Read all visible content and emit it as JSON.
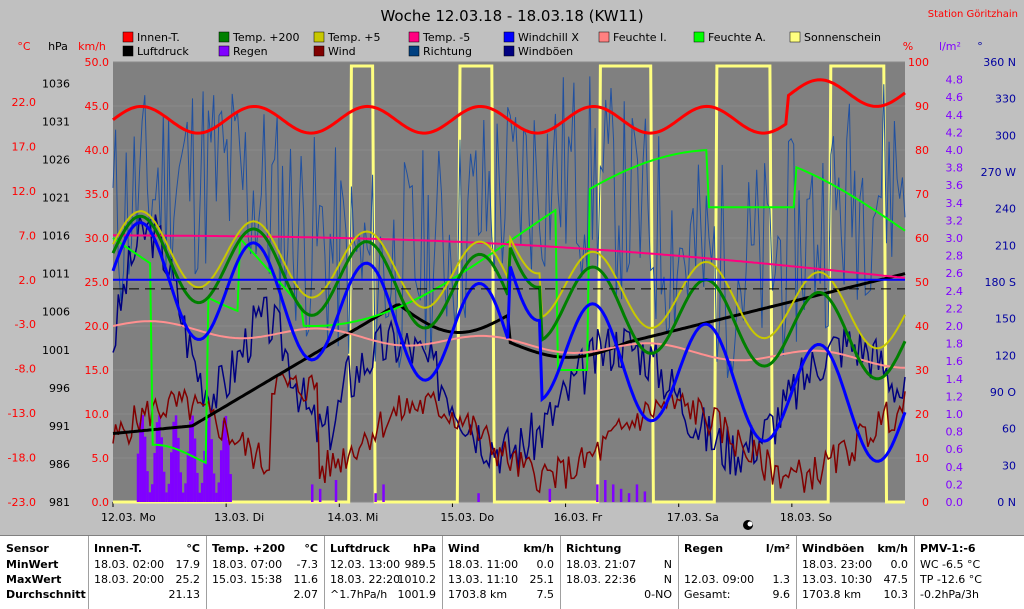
{
  "chart_data": {
    "type": "line",
    "title": "Woche 12.03.18 - 18.03.18 (KW11)",
    "station": "Station Göritzhain",
    "x_labels": [
      "12.03.  Mo",
      "13.03.  Di",
      "14.03.  Mi",
      "15.03.  Do",
      "16.03.  Fr",
      "17.03.  Sa",
      "18.03.  So"
    ],
    "axes": {
      "temp": {
        "unit": "°C",
        "ticks": [
          "22.0",
          "17.0",
          "12.0",
          "7.0",
          "2.0",
          "-3.0",
          "-8.0",
          "-13.0",
          "-18.0",
          "-23.0"
        ],
        "color": "#ff0000"
      },
      "pressure": {
        "unit": "hPa",
        "ticks": [
          "1036",
          "1031",
          "1026",
          "1021",
          "1016",
          "1011",
          "1006",
          "1001",
          "996",
          "991",
          "986",
          "981"
        ],
        "color": "#000000"
      },
      "speed": {
        "unit": "km/h",
        "ticks": [
          "50.0",
          "45.0",
          "40.0",
          "35.0",
          "30.0",
          "25.0",
          "20.0",
          "15.0",
          "10.0",
          "5.0",
          "0.0"
        ],
        "color": "#ff0000"
      },
      "humidity": {
        "unit": "%",
        "ticks": [
          "100",
          "90",
          "80",
          "70",
          "60",
          "50",
          "40",
          "30",
          "20",
          "10",
          "0"
        ],
        "color": "#ff0000"
      },
      "rain": {
        "unit": "l/m²",
        "ticks": [
          "4.8",
          "4.6",
          "4.4",
          "4.2",
          "4.0",
          "3.8",
          "3.6",
          "3.4",
          "3.2",
          "3.0",
          "2.8",
          "2.6",
          "2.4",
          "2.2",
          "2.0",
          "1.8",
          "1.6",
          "1.4",
          "1.2",
          "1.0",
          "0.8",
          "0.6",
          "0.4",
          "0.2",
          "0.0"
        ],
        "color": "#8000ff"
      },
      "direction": {
        "unit": "°",
        "ticks": [
          "360 N",
          "330",
          "300",
          "270 W",
          "240",
          "210",
          "180 S",
          "150",
          "120",
          "90 O",
          "60",
          "30",
          "0 N"
        ],
        "color": "#0000a0"
      }
    },
    "legend": [
      {
        "name": "Innen-T.",
        "color": "#ff0000"
      },
      {
        "name": "Temp. +200",
        "color": "#008000"
      },
      {
        "name": "Temp. +5",
        "color": "#c8c800"
      },
      {
        "name": "Temp. -5",
        "color": "#ff0080"
      },
      {
        "name": "Windchill X",
        "color": "#0000ff"
      },
      {
        "name": "Feuchte I.",
        "color": "#ff8080"
      },
      {
        "name": "Feuchte A.",
        "color": "#00ff00"
      },
      {
        "name": "Sonnenschein",
        "color": "#ffff80"
      },
      {
        "name": "Luftdruck",
        "color": "#000000"
      },
      {
        "name": "Regen",
        "color": "#8000ff"
      },
      {
        "name": "Wind",
        "color": "#800000"
      },
      {
        "name": "Richtung",
        "color": "#004080"
      },
      {
        "name": "Windböen",
        "color": "#000080"
      }
    ],
    "ref_lines": {
      "temp_zero": 2.0,
      "pressure_mean": 1009
    }
  },
  "stats": [
    {
      "header": "Sensor",
      "unit": "",
      "rows": [
        [
          "MinWert",
          ""
        ],
        [
          "MaxWert",
          ""
        ],
        [
          "Durchschnitt",
          ""
        ]
      ]
    },
    {
      "header": "Innen-T.",
      "unit": "°C",
      "rows": [
        [
          "18.03.  02:00",
          "17.9"
        ],
        [
          "18.03.  20:00",
          "25.2"
        ],
        [
          "",
          "21.13"
        ]
      ]
    },
    {
      "header": "Temp. +200",
      "unit": "°C",
      "rows": [
        [
          "18.03.  07:00",
          "-7.3"
        ],
        [
          "15.03.  15:38",
          "11.6"
        ],
        [
          "",
          "2.07"
        ]
      ]
    },
    {
      "header": "Luftdruck",
      "unit": "hPa",
      "rows": [
        [
          "12.03.  13:00",
          "989.5"
        ],
        [
          "18.03.  22:20",
          "1010.2"
        ],
        [
          "^1.7hPa/h",
          "1001.9"
        ]
      ]
    },
    {
      "header": "Wind",
      "unit": "km/h",
      "rows": [
        [
          "18.03.  11:00",
          "0.0"
        ],
        [
          "13.03.  11:10",
          "25.1"
        ],
        [
          "1703.8 km",
          "7.5"
        ]
      ]
    },
    {
      "header": "Richtung",
      "unit": "",
      "rows": [
        [
          "18.03.  21:07",
          "N"
        ],
        [
          "18.03.  22:36",
          "N"
        ],
        [
          "",
          "0-NO"
        ]
      ]
    },
    {
      "header": "Regen",
      "unit": "l/m²",
      "rows": [
        [
          "",
          ""
        ],
        [
          "12.03.  09:00",
          "1.3"
        ],
        [
          "Gesamt:",
          "9.6"
        ]
      ]
    },
    {
      "header": "Windböen",
      "unit": "km/h",
      "rows": [
        [
          "18.03.  23:00",
          "0.0"
        ],
        [
          "13.03.  10:30",
          "47.5"
        ],
        [
          "1703.8 km",
          "10.3"
        ]
      ]
    },
    {
      "header": "PMV-1:-6",
      "unit": "",
      "rows": [
        [
          "WC -6.5 °C",
          ""
        ],
        [
          "TP -12.6 °C",
          ""
        ],
        [
          "-0.2hPa/3h",
          ""
        ]
      ]
    }
  ]
}
